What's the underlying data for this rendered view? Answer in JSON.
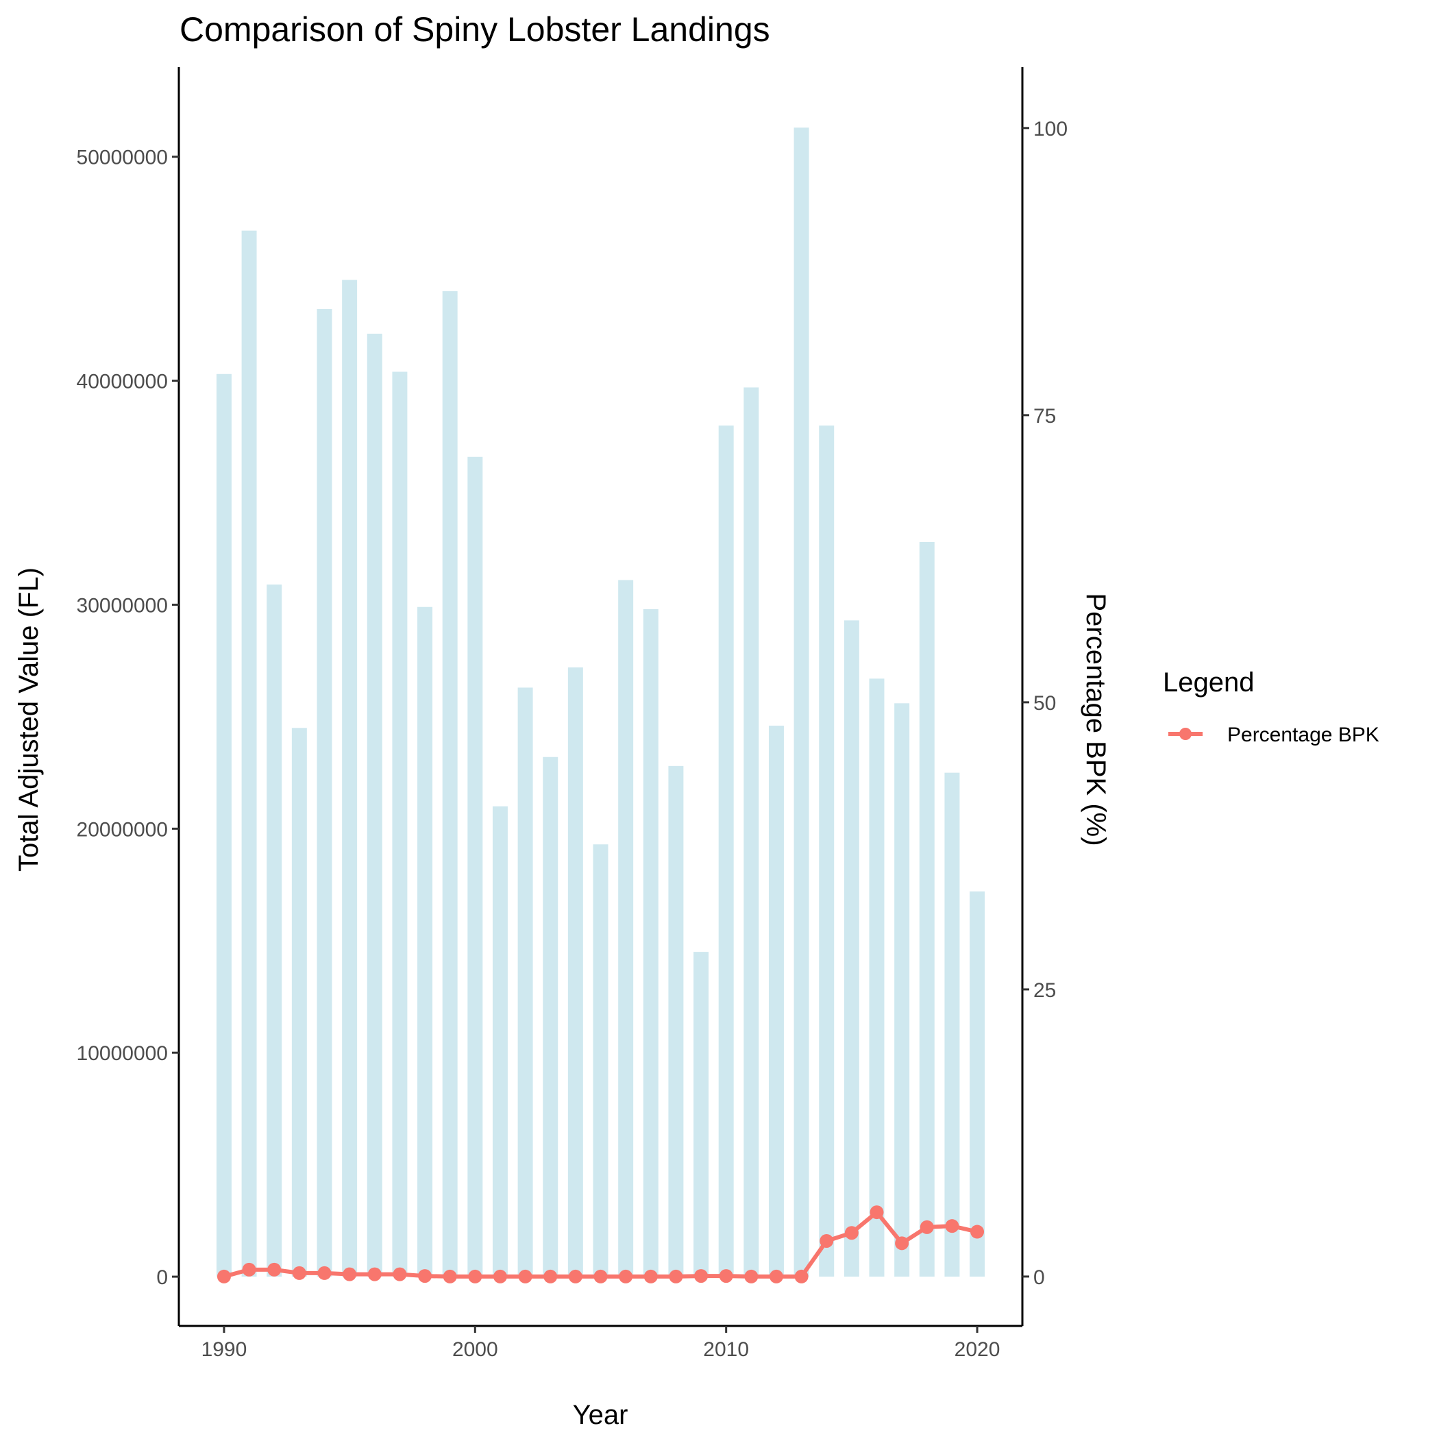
{
  "chart_data": {
    "type": "bar",
    "title": "Comparison of Spiny Lobster Landings",
    "xlabel": "Year",
    "ylabel": "Total Adjusted Value (FL)",
    "y2label": "Percentage BPK (%)",
    "xlim": [
      1988.2,
      2021.8
    ],
    "ylim": [
      -2200000,
      54000000
    ],
    "y2lim": [
      -4.3,
      105.3
    ],
    "x_ticks": [
      1990,
      2000,
      2010,
      2020
    ],
    "y_ticks": [
      0,
      10000000,
      20000000,
      30000000,
      40000000,
      50000000
    ],
    "y2_ticks": [
      0,
      25,
      50,
      75,
      100
    ],
    "bar_color": "#cfe8ef",
    "line_color": "#f8766d",
    "grid": false,
    "legend": {
      "title": "Legend",
      "position": "right"
    },
    "x": [
      1990,
      1991,
      1992,
      1993,
      1994,
      1995,
      1996,
      1997,
      1998,
      1999,
      2000,
      2001,
      2002,
      2003,
      2004,
      2005,
      2006,
      2007,
      2008,
      2009,
      2010,
      2011,
      2012,
      2013,
      2014,
      2015,
      2016,
      2017,
      2018,
      2019,
      2020
    ],
    "series": [
      {
        "type": "bar",
        "axis": "left",
        "values": [
          40300000,
          46700000,
          30900000,
          24500000,
          43200000,
          44500000,
          42100000,
          40400000,
          29900000,
          44000000,
          36600000,
          21000000,
          26300000,
          23200000,
          27200000,
          19300000,
          31100000,
          29800000,
          22800000,
          14500000,
          38000000,
          39700000,
          24600000,
          51300000,
          38000000,
          29300000,
          26700000,
          25600000,
          32800000,
          22500000,
          17200000
        ]
      },
      {
        "type": "line",
        "axis": "right",
        "name": "Percentage BPK",
        "values": [
          0.0,
          0.6,
          0.6,
          0.3,
          0.3,
          0.2,
          0.2,
          0.2,
          0.05,
          0.0,
          0.0,
          0.0,
          0.0,
          0.0,
          0.0,
          0.0,
          0.0,
          0.0,
          0.0,
          0.05,
          0.05,
          0.0,
          0.0,
          0.0,
          3.1,
          3.8,
          5.6,
          2.9,
          4.3,
          4.4,
          3.9
        ]
      }
    ]
  }
}
